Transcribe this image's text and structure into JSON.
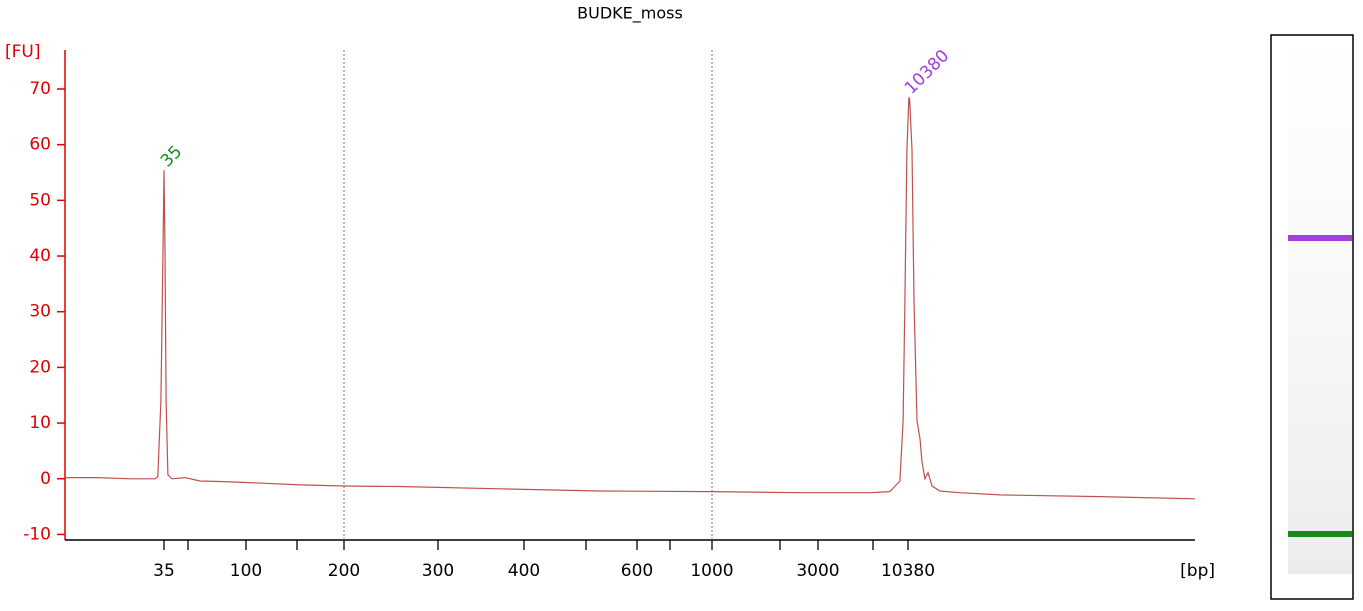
{
  "chart_data": {
    "type": "line",
    "title": "BUDKE_moss",
    "ylabel": "[FU]",
    "xlabel": "[bp]",
    "xlim": [
      20,
      60000
    ],
    "xticks": [
      35,
      100,
      200,
      300,
      400,
      600,
      1000,
      3000,
      10380
    ],
    "minor_xticks": [
      50,
      150,
      500,
      700,
      2000,
      7000
    ],
    "ylim": [
      -11,
      77
    ],
    "yticks": [
      -10,
      0,
      10,
      20,
      30,
      40,
      50,
      60,
      70
    ],
    "axis_color": "#e00000",
    "region_lines": [
      200,
      1000
    ],
    "region_color": "#7a5cc7",
    "series": [
      {
        "color": "#c0504d",
        "x": [
          20,
          24,
          29,
          33.3,
          33.8,
          34.4,
          34.8,
          35,
          35.5,
          36.1,
          37.1,
          39.4,
          47.8,
          57.7,
          73.2,
          103,
          153,
          200,
          254,
          369,
          526,
          1000,
          2478,
          6683,
          8470,
          9480,
          9820,
          10020,
          10250,
          10440,
          10490,
          10640,
          10770,
          10970,
          11170,
          11300,
          11510,
          11730,
          12020,
          12610,
          14260,
          18200,
          33600,
          60000
        ],
        "values": [
          0.2,
          0.2,
          0,
          0,
          0.4,
          14,
          41,
          55.4,
          41,
          14,
          0.7,
          0,
          0.2,
          -0.4,
          -0.5,
          -0.7,
          -1.1,
          -1.3,
          -1.4,
          -1.8,
          -2.2,
          -2.3,
          -2.5,
          -2.5,
          -2.3,
          -0.4,
          10.4,
          32,
          59,
          68.5,
          68,
          59,
          32,
          10.4,
          7.2,
          3.2,
          0,
          1.1,
          -1.3,
          -2.2,
          -2.5,
          -2.9,
          -3.2,
          -3.6
        ]
      }
    ],
    "peak_labels": [
      {
        "text": "35",
        "x": 35,
        "y": 55.4,
        "color": "#1a8a1a"
      },
      {
        "text": "10380",
        "x": 10380,
        "y": 68.5,
        "color": "#a040e0"
      }
    ]
  }
}
